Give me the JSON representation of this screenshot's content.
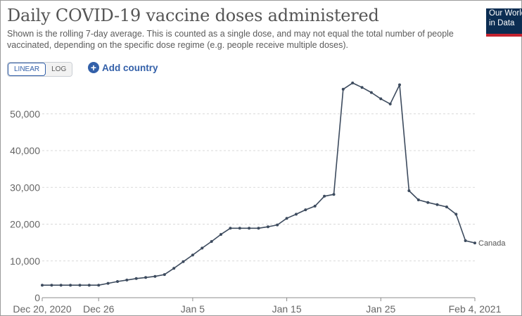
{
  "header": {
    "title": "Daily COVID-19 vaccine doses administered",
    "subtitle": "Shown is the rolling 7-day average. This is counted as a single dose, and may not equal the total number of people vaccinated, depending on the specific dose regime (e.g. people receive multiple doses).",
    "logo_line1": "Our World",
    "logo_line2": "in Data"
  },
  "controls": {
    "linear_label": "LINEAR",
    "log_label": "LOG",
    "add_country_label": "Add country",
    "add_icon": "plus-circle-icon"
  },
  "colors": {
    "series": "#3d4b5e",
    "grid": "#d9d9d9",
    "accent": "#3360a9"
  },
  "chart_data": {
    "type": "line",
    "title": "Daily COVID-19 vaccine doses administered",
    "xlabel": "",
    "ylabel": "",
    "ylim": [
      0,
      58000
    ],
    "yticks": [
      {
        "value": 0,
        "label": "0"
      },
      {
        "value": 10000,
        "label": "10,000"
      },
      {
        "value": 20000,
        "label": "20,000"
      },
      {
        "value": 30000,
        "label": "30,000"
      },
      {
        "value": 40000,
        "label": "40,000"
      },
      {
        "value": 50000,
        "label": "50,000"
      }
    ],
    "xticks": [
      {
        "date": "2020-12-20",
        "label": "Dec 20, 2020"
      },
      {
        "date": "2020-12-26",
        "label": "Dec 26"
      },
      {
        "date": "2021-01-05",
        "label": "Jan 5"
      },
      {
        "date": "2021-01-15",
        "label": "Jan 15"
      },
      {
        "date": "2021-01-25",
        "label": "Jan 25"
      },
      {
        "date": "2021-02-04",
        "label": "Feb 4, 2021"
      }
    ],
    "x_range": [
      "2020-12-20",
      "2021-02-04"
    ],
    "grid": true,
    "series": [
      {
        "name": "Canada",
        "dates": [
          "2020-12-20",
          "2020-12-21",
          "2020-12-22",
          "2020-12-23",
          "2020-12-24",
          "2020-12-25",
          "2020-12-26",
          "2020-12-27",
          "2020-12-28",
          "2020-12-29",
          "2020-12-30",
          "2020-12-31",
          "2021-01-01",
          "2021-01-02",
          "2021-01-03",
          "2021-01-04",
          "2021-01-05",
          "2021-01-06",
          "2021-01-07",
          "2021-01-08",
          "2021-01-09",
          "2021-01-10",
          "2021-01-11",
          "2021-01-12",
          "2021-01-13",
          "2021-01-14",
          "2021-01-15",
          "2021-01-16",
          "2021-01-17",
          "2021-01-18",
          "2021-01-19",
          "2021-01-20",
          "2021-01-21",
          "2021-01-22",
          "2021-01-23",
          "2021-01-24",
          "2021-01-25",
          "2021-01-26",
          "2021-01-27",
          "2021-01-28",
          "2021-01-29",
          "2021-01-30",
          "2021-01-31",
          "2021-02-01",
          "2021-02-02",
          "2021-02-03",
          "2021-02-04"
        ],
        "values": [
          3400,
          3400,
          3400,
          3400,
          3400,
          3400,
          3400,
          3900,
          4400,
          4800,
          5200,
          5500,
          5800,
          6300,
          8000,
          9800,
          11600,
          13500,
          15300,
          17200,
          18900,
          18900,
          18900,
          18900,
          19300,
          19800,
          21600,
          22700,
          23900,
          24900,
          27600,
          28100,
          56700,
          58400,
          57200,
          55800,
          54100,
          52700,
          57900,
          29100,
          26600,
          25900,
          25300,
          24700,
          22700,
          15500,
          14900
        ]
      }
    ],
    "series_label": "Canada"
  }
}
